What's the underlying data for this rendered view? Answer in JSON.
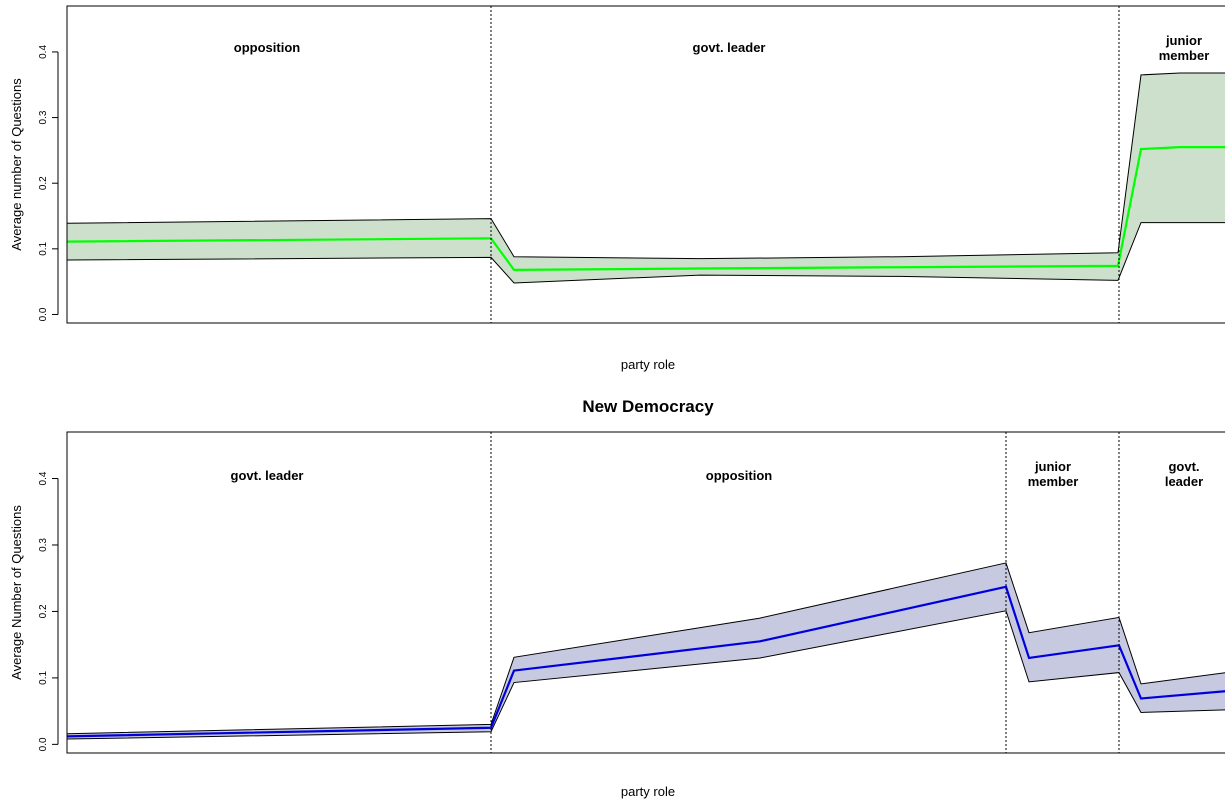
{
  "chart_data": [
    {
      "type": "line",
      "title": "",
      "xlabel": "party role",
      "ylabel": "Average number of Questions",
      "ylim": [
        -0.013,
        0.47
      ],
      "yticks": [
        "0.0",
        "0.1",
        "0.2",
        "0.3",
        "0.4"
      ],
      "regions": [
        {
          "label_lines": [
            "opposition"
          ]
        },
        {
          "label_lines": [
            "govt. leader"
          ]
        },
        {
          "label_lines": [
            "junior",
            "member"
          ]
        }
      ],
      "series": [
        {
          "color": "#00ff00",
          "band_color": "#cce0cc",
          "x": [
            0,
            10,
            20,
            30,
            40,
            50,
            60,
            70,
            80,
            90,
            100
          ],
          "mean": [
            0.111,
            0.116,
            0.068,
            0.07,
            0.072,
            0.074,
            0.252,
            0.255,
            0.255,
            0.255,
            0.255
          ],
          "upper": [
            0.139,
            0.146,
            0.088,
            0.085,
            0.088,
            0.094,
            0.365,
            0.368,
            0.368,
            0.368,
            0.368
          ],
          "lower": [
            0.083,
            0.087,
            0.048,
            0.06,
            0.058,
            0.052,
            0.14,
            0.14,
            0.14,
            0.14,
            0.14
          ]
        }
      ]
    },
    {
      "type": "line",
      "title": "New Democracy",
      "xlabel": "party role",
      "ylabel": "Average Number of Questions",
      "ylim": [
        -0.013,
        0.47
      ],
      "yticks": [
        "0.0",
        "0.1",
        "0.2",
        "0.3",
        "0.4"
      ],
      "regions": [
        {
          "label_lines": [
            "govt. leader"
          ]
        },
        {
          "label_lines": [
            "opposition"
          ]
        },
        {
          "label_lines": [
            "junior",
            "member"
          ]
        },
        {
          "label_lines": [
            "govt.",
            "leader"
          ]
        }
      ],
      "series": [
        {
          "color": "#0000dd",
          "band_color": "#c6c9df",
          "x": [
            0,
            10,
            20,
            30,
            40,
            50,
            60,
            70,
            80,
            90,
            100
          ],
          "mean": [
            0.012,
            0.025,
            0.111,
            0.155,
            0.237,
            0.13,
            0.149,
            0.069,
            0.08,
            0.08,
            0.08
          ],
          "upper": [
            0.016,
            0.03,
            0.131,
            0.19,
            0.273,
            0.168,
            0.191,
            0.091,
            0.108,
            0.108,
            0.108
          ],
          "lower": [
            0.008,
            0.019,
            0.093,
            0.13,
            0.201,
            0.094,
            0.108,
            0.048,
            0.052,
            0.052,
            0.052
          ]
        }
      ]
    }
  ]
}
